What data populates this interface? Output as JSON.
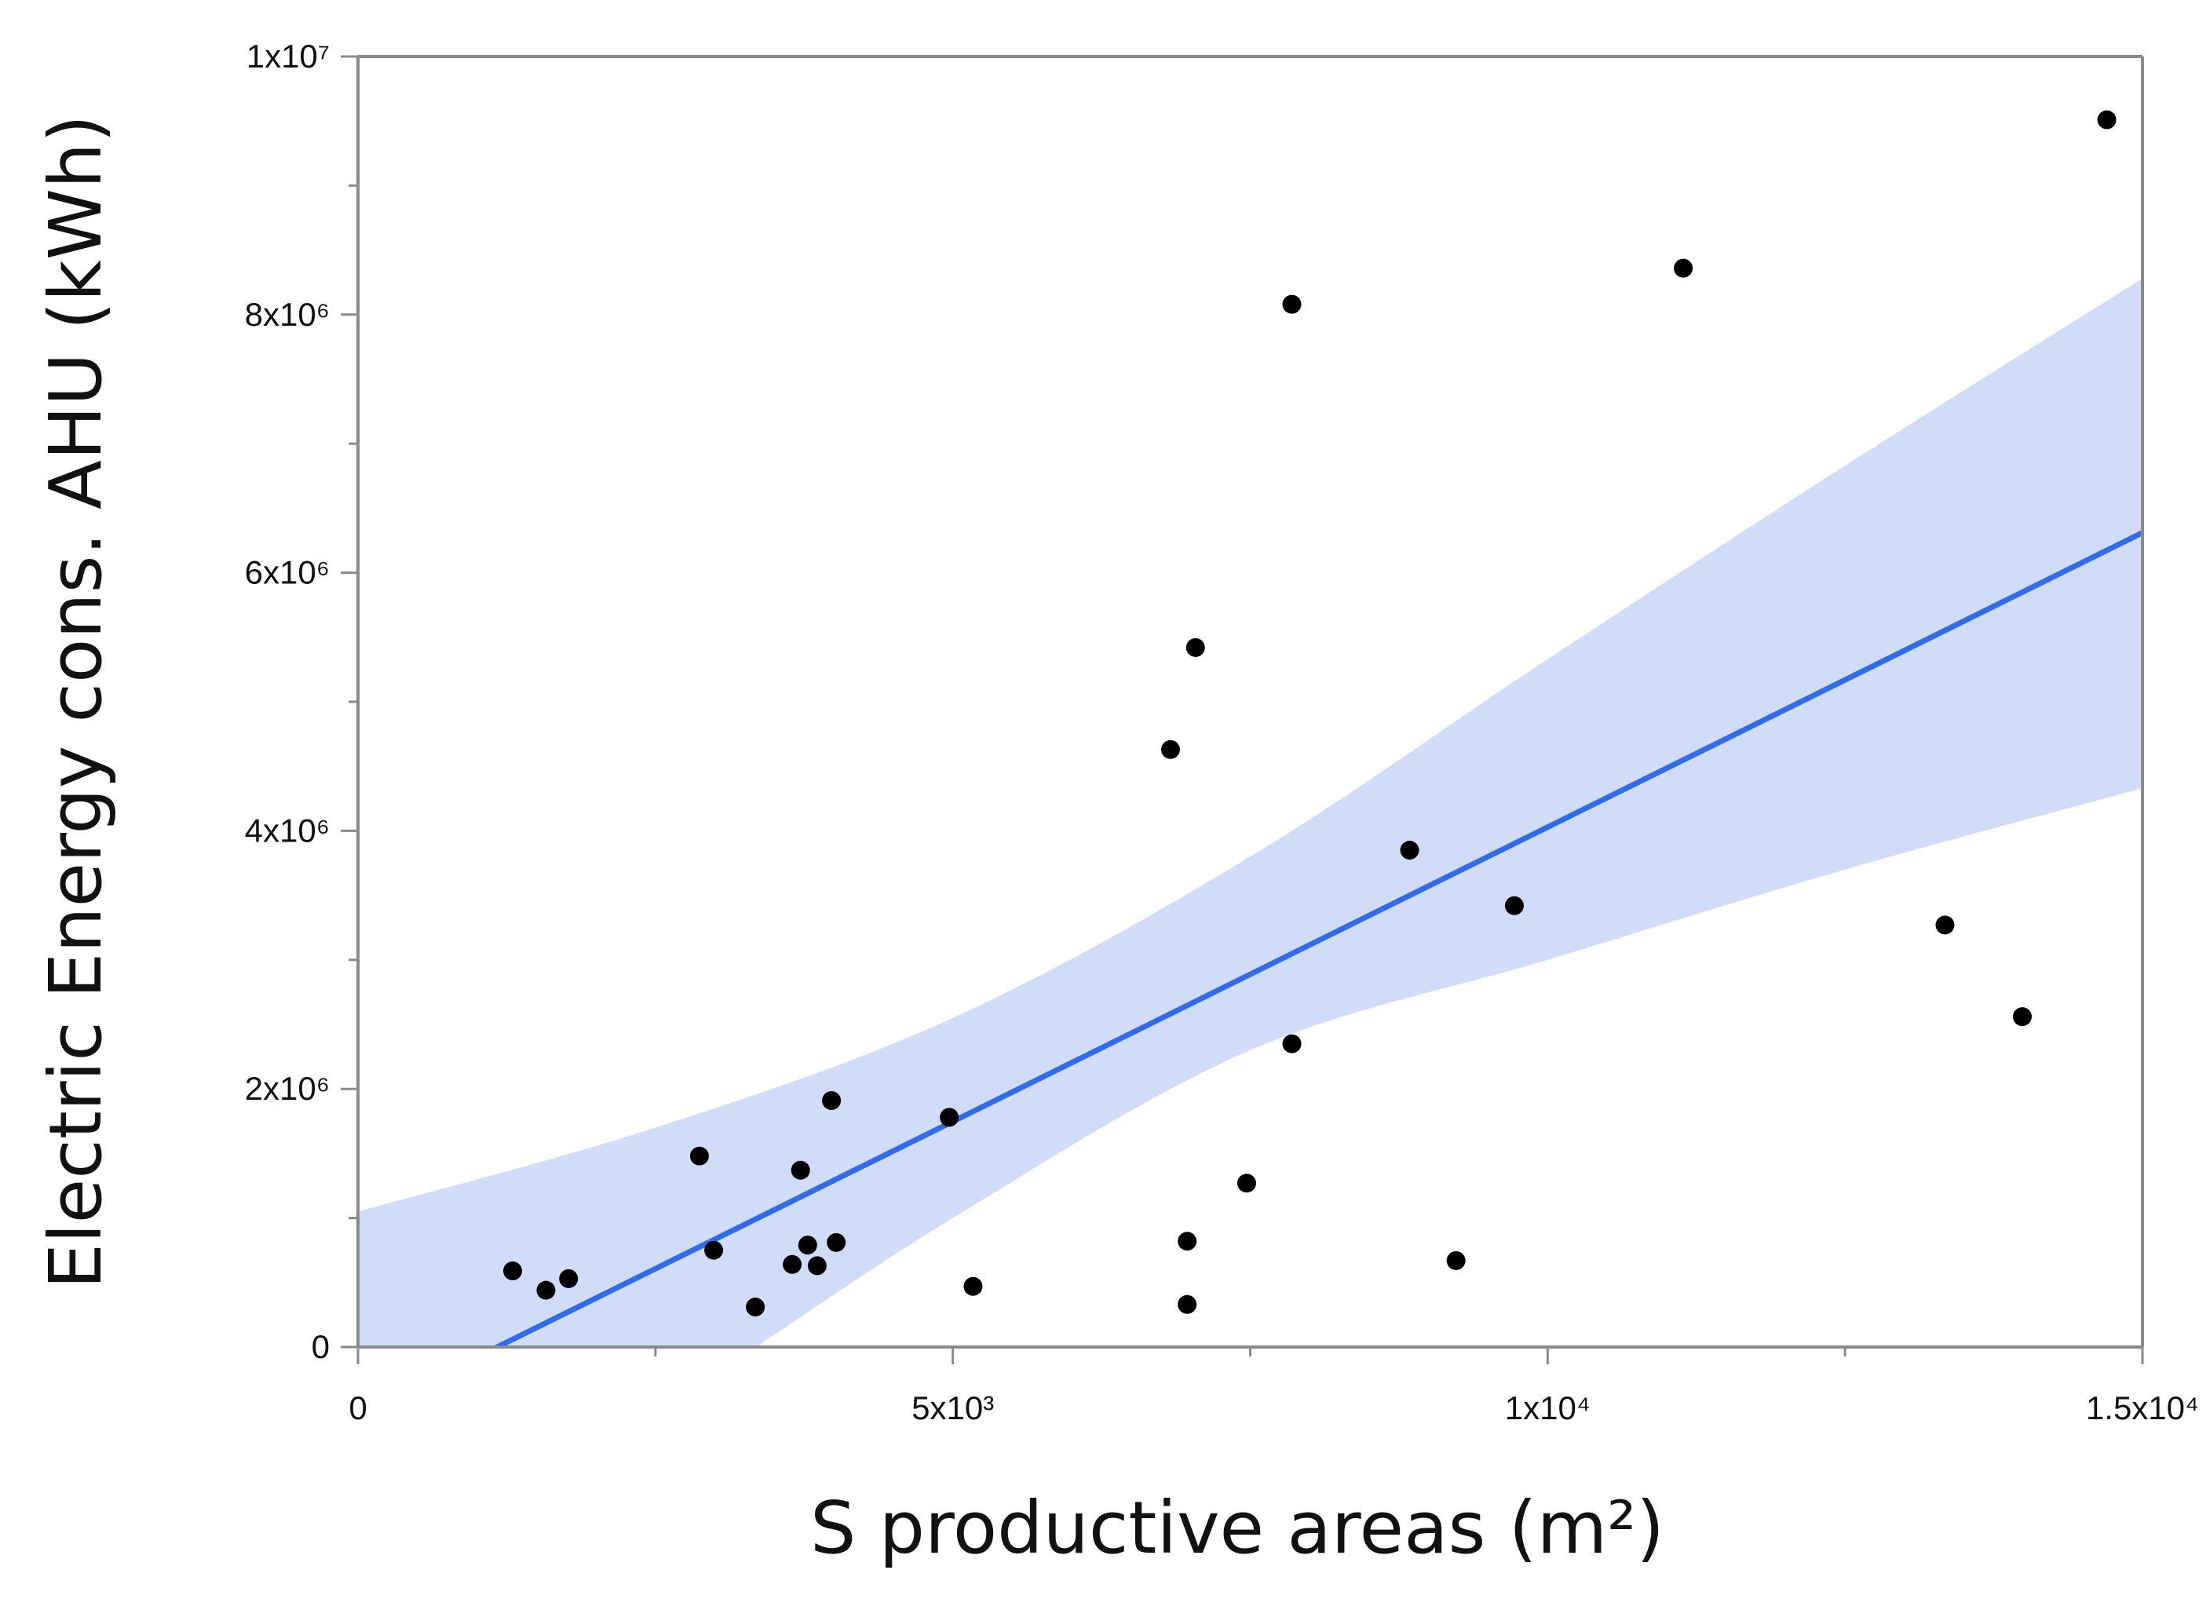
{
  "chart_data": {
    "type": "scatter",
    "title": "",
    "xlabel": "S productive areas (m²)",
    "ylabel": "Electric Energy cons. AHU (kWh)",
    "xlim": [
      0,
      15000
    ],
    "ylim": [
      0,
      10000000
    ],
    "x_ticks": [
      {
        "value": 0,
        "label": "0"
      },
      {
        "value": 5000,
        "label": "5x10³"
      },
      {
        "value": 10000,
        "label": "1x10⁴"
      },
      {
        "value": 15000,
        "label": "1.5x10⁴"
      }
    ],
    "x_minor_ticks": [
      2500,
      7500,
      12500
    ],
    "y_ticks": [
      {
        "value": 0,
        "label": "0"
      },
      {
        "value": 2000000,
        "label": "2x10⁶"
      },
      {
        "value": 4000000,
        "label": "4x10⁶"
      },
      {
        "value": 6000000,
        "label": "6x10⁶"
      },
      {
        "value": 8000000,
        "label": "8x10⁶"
      },
      {
        "value": 10000000,
        "label": "1x10⁷"
      }
    ],
    "y_minor_ticks": [
      1000000,
      3000000,
      5000000,
      7000000,
      9000000
    ],
    "series": [
      {
        "name": "observations",
        "type": "scatter",
        "color": "#000000",
        "points": [
          {
            "x": 1300,
            "y": 590000
          },
          {
            "x": 1580,
            "y": 440000
          },
          {
            "x": 1770,
            "y": 530000
          },
          {
            "x": 2870,
            "y": 1480000
          },
          {
            "x": 2990,
            "y": 750000
          },
          {
            "x": 3340,
            "y": 310000
          },
          {
            "x": 3650,
            "y": 640000
          },
          {
            "x": 3720,
            "y": 1370000
          },
          {
            "x": 3780,
            "y": 790000
          },
          {
            "x": 3860,
            "y": 630000
          },
          {
            "x": 3980,
            "y": 1910000
          },
          {
            "x": 4020,
            "y": 810000
          },
          {
            "x": 4970,
            "y": 1780000
          },
          {
            "x": 5170,
            "y": 470000
          },
          {
            "x": 6830,
            "y": 4630000
          },
          {
            "x": 6970,
            "y": 820000
          },
          {
            "x": 6970,
            "y": 330000
          },
          {
            "x": 7040,
            "y": 5420000
          },
          {
            "x": 7470,
            "y": 1270000
          },
          {
            "x": 7850,
            "y": 8080000
          },
          {
            "x": 7850,
            "y": 2350000
          },
          {
            "x": 8840,
            "y": 3850000
          },
          {
            "x": 9230,
            "y": 670000
          },
          {
            "x": 9720,
            "y": 3420000
          },
          {
            "x": 11140,
            "y": 8360000
          },
          {
            "x": 13340,
            "y": 3270000
          },
          {
            "x": 13990,
            "y": 2560000
          },
          {
            "x": 14700,
            "y": 9510000
          }
        ]
      },
      {
        "name": "linear fit",
        "type": "line",
        "color": "#2f6bea",
        "x": [
          1170,
          15000
        ],
        "y": [
          0,
          6310000
        ]
      },
      {
        "name": "confidence band",
        "type": "area",
        "color": "#d0dcf8",
        "x": [
          0,
          2500,
          5000,
          7500,
          10000,
          12500,
          15000
        ],
        "upper": [
          1050000,
          1700000,
          2550000,
          3800000,
          5330000,
          6830000,
          8280000
        ],
        "lower": [
          -1800000,
          -500000,
          1000000,
          2300000,
          3000000,
          3700000,
          4330000
        ]
      }
    ]
  }
}
